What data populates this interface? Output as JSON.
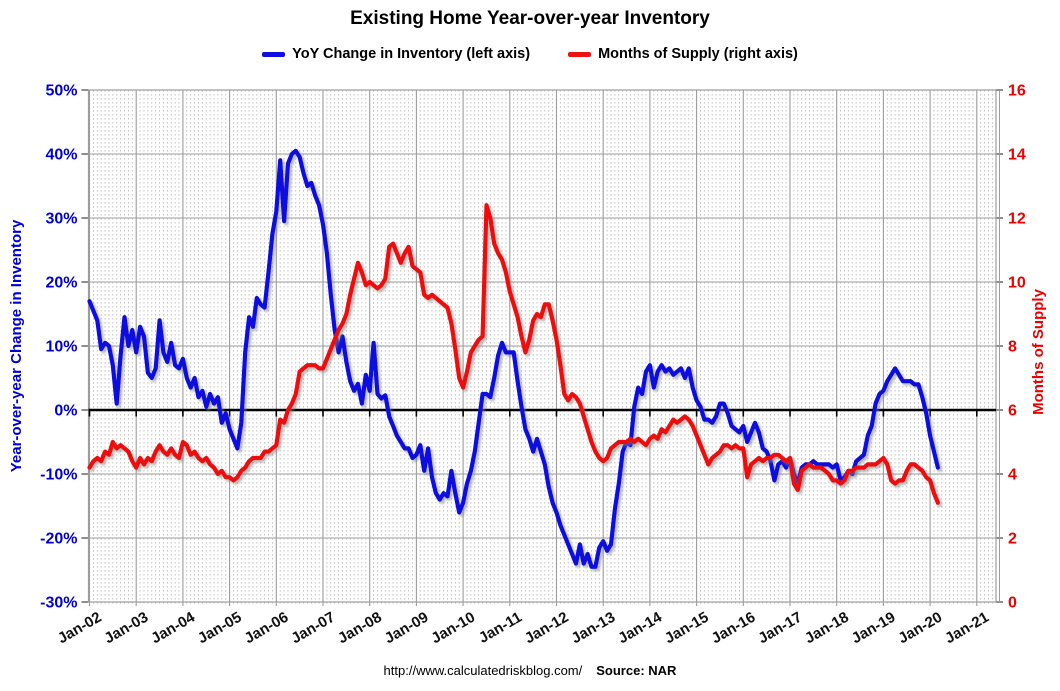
{
  "title": "Existing Home Year-over-year Inventory",
  "legend": [
    {
      "label": "YoY Change in Inventory (left axis)",
      "color": "#0f0fe0"
    },
    {
      "label": "Months of Supply (right axis)",
      "color": "#ee1111"
    }
  ],
  "footer": {
    "url": "http://www.calculatedriskblog.com/",
    "source_label": "Source: NAR"
  },
  "chart_data": {
    "type": "line",
    "title": "Existing Home Year-over-year Inventory",
    "x_unit": "month",
    "x_start": "Jan-2002",
    "x_end": "Mar-2020",
    "x_tick_labels": [
      "Jan-02",
      "Jan-03",
      "Jan-04",
      "Jan-05",
      "Jan-06",
      "Jan-07",
      "Jan-08",
      "Jan-09",
      "Jan-10",
      "Jan-11",
      "Jan-12",
      "Jan-13",
      "Jan-14",
      "Jan-15",
      "Jan-16",
      "Jan-17",
      "Jan-18",
      "Jan-19",
      "Jan-20",
      "Jan-21"
    ],
    "grid": {
      "major_vertical": "yearly",
      "minor_vertical": "monthly-dashed",
      "horizontal": "every 10% / 2 months",
      "zero_line": true
    },
    "legend_position": "top",
    "left_axis": {
      "label": "Year-over-year Change in Inventory",
      "color": "#0000d8",
      "min": -30,
      "max": 50,
      "tick_labels": [
        "50%",
        "40%",
        "30%",
        "20%",
        "10%",
        "0%",
        "-10%",
        "-20%",
        "-30%"
      ]
    },
    "right_axis": {
      "label": "Months of Supply",
      "color": "#ee0000",
      "min": 0,
      "max": 16,
      "tick_labels": [
        "16",
        "14",
        "12",
        "10",
        "8",
        "6",
        "4",
        "2",
        "0"
      ]
    },
    "series": [
      {
        "name": "YoY Change in Inventory (left axis)",
        "axis": "left",
        "unit": "%",
        "color": "#0f0fe0",
        "values": [
          17,
          15.5,
          14,
          9.5,
          10.5,
          10,
          7,
          1,
          8.5,
          14.5,
          10,
          12.5,
          9,
          13,
          11.5,
          5.8,
          5,
          6.5,
          14,
          9,
          7.5,
          10.5,
          7,
          6.5,
          8,
          5,
          3.5,
          5,
          2,
          3,
          0.5,
          2.5,
          1,
          2,
          -2,
          -0.5,
          -3,
          -4.5,
          -6,
          -2,
          9,
          14.5,
          13,
          17.5,
          16.5,
          16,
          21.5,
          27.5,
          31,
          39,
          29.5,
          38.5,
          40,
          40.5,
          39.5,
          37,
          35,
          35.5,
          33.5,
          32,
          29,
          24.5,
          18,
          12.5,
          9,
          11.5,
          7.5,
          4.5,
          3,
          4.1,
          1,
          5.5,
          3,
          10.5,
          2.5,
          1.8,
          2.3,
          -1,
          -2.5,
          -4,
          -5,
          -6,
          -6,
          -7.5,
          -7,
          -5.5,
          -9.5,
          -6,
          -10.5,
          -13,
          -14,
          -13,
          -13.5,
          -9.5,
          -13,
          -16,
          -14.5,
          -11.5,
          -9.5,
          -6.5,
          -2,
          2.5,
          2.5,
          2,
          5,
          8.5,
          10.5,
          9,
          9,
          9,
          4.5,
          0.5,
          -3,
          -4.5,
          -6.5,
          -4.5,
          -6.5,
          -8.5,
          -12,
          -14.5,
          -16,
          -18,
          -19.5,
          -21,
          -22.5,
          -24,
          -21,
          -24,
          -22.5,
          -24.5,
          -24.5,
          -21.5,
          -20.5,
          -22,
          -21,
          -15.5,
          -11.5,
          -6.5,
          -5,
          -5.5,
          0.5,
          3.5,
          2.5,
          6,
          7,
          3.5,
          6,
          7,
          6,
          6.5,
          5.5,
          6,
          6.5,
          5,
          6.5,
          3.5,
          1.5,
          0.5,
          -1.5,
          -1.5,
          -2,
          -1,
          1,
          1,
          -0.5,
          -2.5,
          -3,
          -3.5,
          -2.5,
          -5,
          -3.5,
          -2,
          -3.5,
          -6,
          -6.5,
          -8,
          -11,
          -8.5,
          -8,
          -9,
          -7.5,
          -10,
          -11.5,
          -9,
          -8.5,
          -8.5,
          -8,
          -8.5,
          -8.5,
          -8.5,
          -8.5,
          -9,
          -8.5,
          -11,
          -10.5,
          -9.5,
          -10,
          -8,
          -7.5,
          -7,
          -4,
          -2.5,
          1,
          2.5,
          3,
          4.5,
          5.5,
          6.5,
          5.5,
          4.5,
          4.5,
          4.5,
          4,
          4,
          2,
          -0.5,
          -4,
          -6.5,
          -9
        ]
      },
      {
        "name": "Months of Supply (right axis)",
        "axis": "right",
        "unit": "months",
        "color": "#ee1111",
        "values": [
          4.2,
          4.4,
          4.5,
          4.4,
          4.7,
          4.6,
          5.0,
          4.8,
          4.9,
          4.8,
          4.7,
          4.4,
          4.2,
          4.5,
          4.3,
          4.5,
          4.4,
          4.7,
          4.9,
          4.7,
          4.6,
          4.8,
          4.6,
          4.5,
          5.0,
          4.9,
          4.6,
          4.7,
          4.5,
          4.4,
          4.5,
          4.3,
          4.2,
          4.0,
          4.1,
          3.9,
          3.9,
          3.8,
          3.9,
          4.1,
          4.2,
          4.4,
          4.5,
          4.5,
          4.5,
          4.7,
          4.7,
          4.8,
          4.9,
          5.7,
          5.6,
          6.0,
          6.2,
          6.5,
          7.2,
          7.3,
          7.4,
          7.4,
          7.4,
          7.3,
          7.3,
          7.6,
          7.9,
          8.2,
          8.5,
          8.7,
          9.0,
          9.6,
          10.1,
          10.6,
          10.3,
          9.9,
          10.0,
          9.9,
          9.8,
          9.9,
          10.1,
          11.1,
          11.2,
          10.9,
          10.6,
          10.9,
          11.1,
          10.5,
          10.4,
          10.3,
          9.6,
          9.5,
          9.6,
          9.5,
          9.4,
          9.3,
          9.2,
          8.7,
          7.9,
          7.0,
          6.7,
          7.2,
          7.8,
          8.0,
          8.2,
          8.3,
          12.4,
          12.0,
          11.2,
          10.9,
          10.7,
          10.3,
          9.7,
          9.3,
          8.9,
          8.3,
          7.8,
          8.2,
          8.8,
          9.0,
          8.9,
          9.3,
          9.3,
          8.8,
          8.2,
          7.4,
          6.5,
          6.3,
          6.5,
          6.4,
          6.2,
          5.8,
          5.4,
          5.0,
          4.7,
          4.5,
          4.4,
          4.5,
          4.8,
          4.9,
          5.0,
          5.0,
          5.0,
          5.1,
          5.0,
          5.1,
          5.0,
          4.9,
          5.1,
          5.2,
          5.1,
          5.4,
          5.3,
          5.5,
          5.7,
          5.6,
          5.7,
          5.8,
          5.7,
          5.5,
          5.2,
          4.9,
          4.6,
          4.3,
          4.5,
          4.6,
          4.7,
          4.9,
          4.9,
          4.8,
          4.9,
          4.8,
          4.8,
          3.9,
          4.3,
          4.4,
          4.5,
          4.4,
          4.5,
          4.5,
          4.6,
          4.6,
          4.5,
          4.4,
          4.5,
          3.7,
          3.5,
          4.1,
          4.2,
          4.3,
          4.2,
          4.2,
          4.2,
          4.1,
          4.0,
          3.8,
          3.8,
          3.7,
          3.8,
          4.1,
          4.1,
          4.2,
          4.2,
          4.2,
          4.3,
          4.3,
          4.3,
          4.4,
          4.5,
          4.3,
          3.8,
          3.7,
          3.8,
          3.8,
          4.1,
          4.3,
          4.3,
          4.2,
          4.1,
          3.9,
          3.8,
          3.4,
          3.1
        ]
      }
    ]
  }
}
